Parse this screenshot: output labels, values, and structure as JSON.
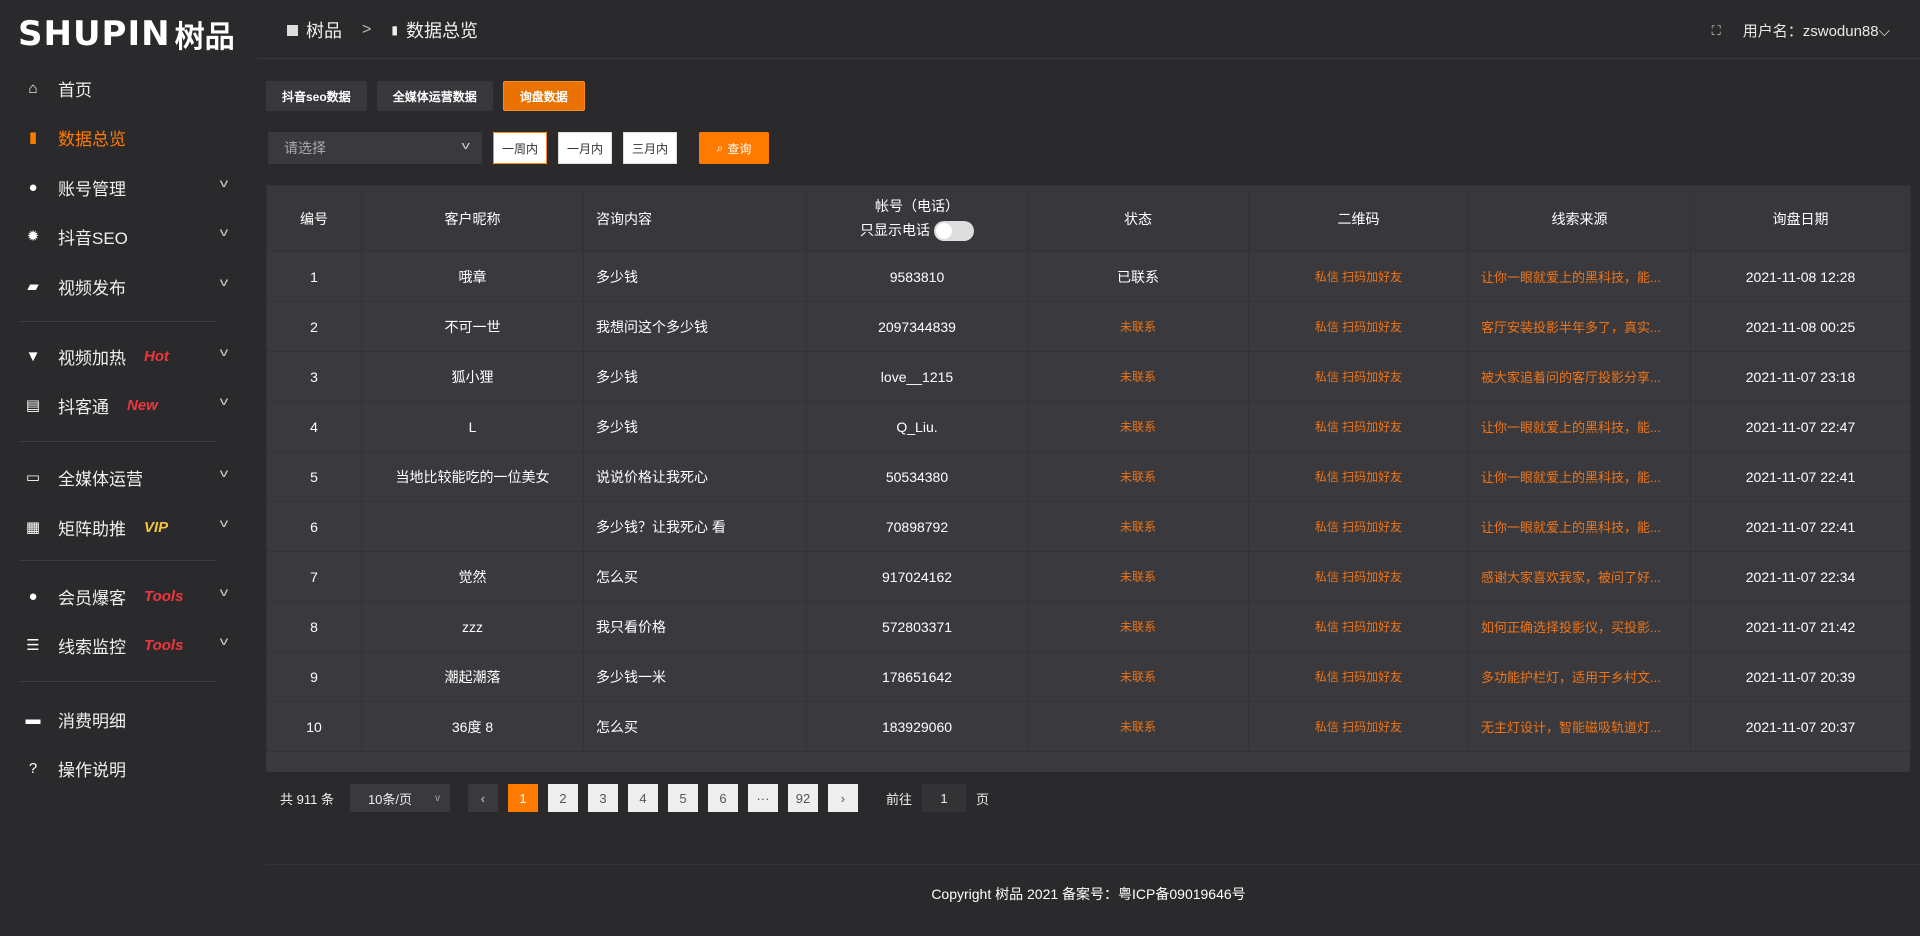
{
  "logo": {
    "en": "SHUPIN",
    "cn": "树品"
  },
  "sidebar": {
    "items": [
      {
        "label": "首页",
        "icon": "home-icon",
        "glyph": "⌂"
      },
      {
        "label": "数据总览",
        "icon": "bar-chart-icon",
        "glyph": "▮",
        "active": true
      },
      {
        "label": "账号管理",
        "icon": "user-icon",
        "glyph": "●"
      },
      {
        "label": "抖音SEO",
        "icon": "gear-icon",
        "glyph": "✹"
      },
      {
        "label": "视频发布",
        "icon": "video-icon",
        "glyph": "▰"
      },
      {
        "label": "视频加热",
        "icon": "brush-icon",
        "glyph": "▼",
        "badge": "Hot"
      },
      {
        "label": "抖客通",
        "icon": "chat-icon",
        "glyph": "▤",
        "badge": "New"
      },
      {
        "label": "全媒体运营",
        "icon": "monitor-icon",
        "glyph": "▭"
      },
      {
        "label": "矩阵助推",
        "icon": "grid-icon",
        "glyph": "▦",
        "badge": "VIP"
      },
      {
        "label": "会员爆客",
        "icon": "user-icon",
        "glyph": "●",
        "badge": "Tools"
      },
      {
        "label": "线索监控",
        "icon": "sliders-icon",
        "glyph": "☰",
        "badge": "Tools"
      },
      {
        "label": "消费明细",
        "icon": "wallet-icon",
        "glyph": "▬"
      },
      {
        "label": "操作说明",
        "icon": "help-icon",
        "glyph": "?"
      }
    ]
  },
  "header": {
    "breadcrumb": [
      "树品",
      "数据总览"
    ],
    "separator": ">",
    "user_label": "用户名：zswodun88",
    "chevron": "⌵",
    "fullscreen": "⛶"
  },
  "tabs": [
    "抖音seo数据",
    "全媒体运营数据",
    "询盘数据"
  ],
  "filters": {
    "select_placeholder": "请选择",
    "ranges": [
      "一周内",
      "一月内",
      "三月内"
    ],
    "query": "查询"
  },
  "table": {
    "headers": [
      "编号",
      "客户昵称",
      "咨询内容",
      "帐号（电话）",
      "状态",
      "二维码",
      "线索来源",
      "询盘日期"
    ],
    "phone_toggle_label": "只显示电话",
    "phone_toggle_on": false,
    "qr_text": "私信 扫码加好友",
    "rows": [
      [
        "1",
        "哦章",
        "多少钱",
        "9583810",
        "已联系",
        "私信 扫码加好友",
        "让你一眼就爱上的黑科技，能...",
        "2021-11-08 12:28"
      ],
      [
        "2",
        "不可一世",
        "我想问这个多少钱",
        "2097344839",
        "未联系",
        "私信 扫码加好友",
        "客厅安装投影半年多了，真实...",
        "2021-11-08 00:25"
      ],
      [
        "3",
        "狐小狸",
        "多少钱",
        "love__1215",
        "未联系",
        "私信 扫码加好友",
        "被大家追着问的客厅投影分享...",
        "2021-11-07 23:18"
      ],
      [
        "4",
        "L",
        "多少钱",
        "Q_Liu.",
        "未联系",
        "私信 扫码加好友",
        "让你一眼就爱上的黑科技，能...",
        "2021-11-07 22:47"
      ],
      [
        "5",
        "当地比较能吃的一位美女",
        "说说价格让我死心",
        "50534380",
        "未联系",
        "私信 扫码加好友",
        "让你一眼就爱上的黑科技，能...",
        "2021-11-07 22:41"
      ],
      [
        "6",
        "",
        "多少钱？让我死心 看",
        "70898792",
        "未联系",
        "私信 扫码加好友",
        "让你一眼就爱上的黑科技，能...",
        "2021-11-07 22:41"
      ],
      [
        "7",
        "觉然",
        "怎么买",
        "917024162",
        "未联系",
        "私信 扫码加好友",
        "感谢大家喜欢我家，被问了好...",
        "2021-11-07 22:34"
      ],
      [
        "8",
        "zzz",
        "我只看价格",
        "572803371",
        "未联系",
        "私信 扫码加好友",
        "如何正确选择投影仪，买投影...",
        "2021-11-07 21:42"
      ],
      [
        "9",
        "潮起潮落",
        "多少钱一米",
        "178651642",
        "未联系",
        "私信 扫码加好友",
        "多功能护栏灯，适用于乡村文...",
        "2021-11-07 20:39"
      ],
      [
        "10",
        "36度 8",
        "怎么买",
        "183929060",
        "未联系",
        "私信 扫码加好友",
        "无主灯设计，智能磁吸轨道灯...",
        "2021-11-07 20:37"
      ]
    ]
  },
  "pagination": {
    "total": "共 911 条",
    "page_size": "10条/页",
    "prev": "‹",
    "next": "›",
    "pages": [
      "1",
      "2",
      "3",
      "4",
      "5",
      "6",
      "···",
      "92"
    ],
    "current": "1",
    "goto_label": "前往",
    "goto_value": "1",
    "page_unit": "页"
  },
  "footer": {
    "copyright": "Copyright 树品 2021 备案号：粤ICP备09019646号"
  },
  "colors": {
    "accent": "#ff7a00",
    "badge_red": "#f2353d",
    "badge_gold": "#f5c242"
  }
}
